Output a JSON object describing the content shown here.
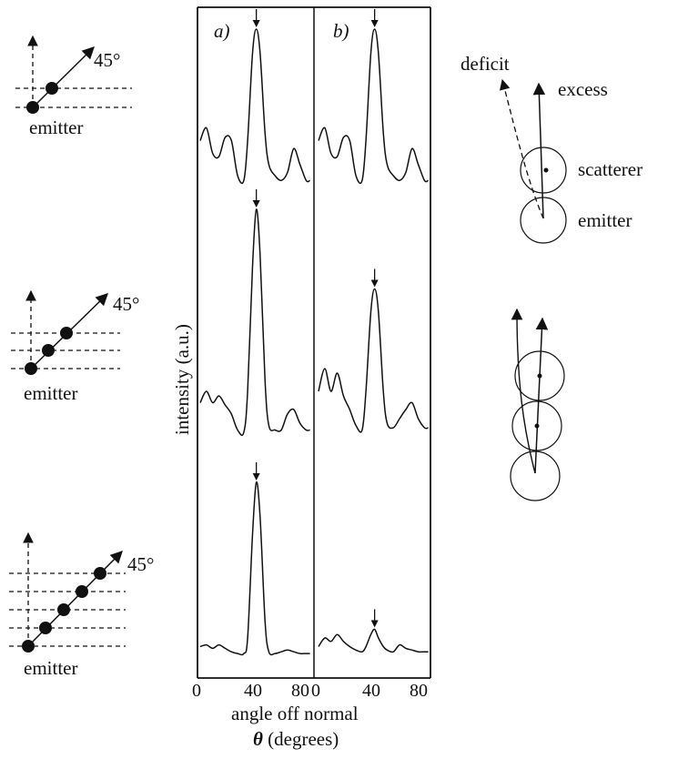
{
  "left_diagrams": [
    {
      "angle_label": "45°",
      "emitter_label": "emitter",
      "atoms": 2
    },
    {
      "angle_label": "45°",
      "emitter_label": "emitter",
      "atoms": 3
    },
    {
      "angle_label": "45°",
      "emitter_label": "emitter",
      "atoms": 5
    }
  ],
  "panel_labels": {
    "a": "a)",
    "b": "b)"
  },
  "y_axis_label": "intensity (a.u.)",
  "x_axis": {
    "label": "angle off normal",
    "unit_symbol": "θ",
    "unit_text": "(degrees)",
    "ticks_a": [
      "0",
      "40",
      "80"
    ],
    "ticks_b": [
      "0",
      "40",
      "80"
    ]
  },
  "right_diagram": {
    "deficit_label": "deficit",
    "excess_label": "excess",
    "scatterer_label": "scatterer",
    "emitter_label": "emitter"
  },
  "chart_data": {
    "type": "line",
    "x_range": [
      0,
      90
    ],
    "xlabel": "angle off normal θ (degrees)",
    "ylabel": "intensity (a.u.)",
    "panels": [
      {
        "name": "a)",
        "traces": [
          {
            "atoms": 2,
            "x": [
              0,
              5,
              10,
              15,
              20,
              25,
              30,
              35,
              38,
              42,
              45,
              48,
              52,
              55,
              60,
              65,
              70,
              75,
              80,
              85,
              90
            ],
            "y": [
              0.3,
              0.38,
              0.22,
              0.2,
              0.32,
              0.3,
              0.08,
              0.05,
              0.3,
              0.85,
              1.0,
              0.85,
              0.35,
              0.15,
              0.08,
              0.05,
              0.1,
              0.25,
              0.15,
              0.05,
              0.05
            ]
          },
          {
            "atoms": 3,
            "x": [
              0,
              5,
              10,
              15,
              20,
              25,
              30,
              35,
              38,
              42,
              45,
              48,
              52,
              55,
              60,
              65,
              70,
              75,
              80,
              85,
              90
            ],
            "y": [
              0.15,
              0.2,
              0.15,
              0.18,
              0.14,
              0.1,
              0.03,
              0.02,
              0.2,
              0.75,
              1.0,
              0.8,
              0.25,
              0.05,
              0.03,
              0.03,
              0.1,
              0.12,
              0.06,
              0.03,
              0.03
            ]
          },
          {
            "atoms": 5,
            "x": [
              0,
              5,
              10,
              15,
              20,
              25,
              30,
              35,
              38,
              42,
              45,
              48,
              52,
              55,
              60,
              65,
              70,
              75,
              80,
              85,
              90
            ],
            "y": [
              0.05,
              0.06,
              0.04,
              0.06,
              0.04,
              0.02,
              0.01,
              0.01,
              0.1,
              0.7,
              1.0,
              0.8,
              0.2,
              0.02,
              0.01,
              0.02,
              0.03,
              0.02,
              0.01,
              0.01,
              0.01
            ]
          }
        ]
      },
      {
        "name": "b)",
        "traces": [
          {
            "atoms": 2,
            "x": [
              0,
              5,
              10,
              15,
              20,
              25,
              30,
              35,
              38,
              42,
              45,
              48,
              52,
              55,
              60,
              65,
              70,
              75,
              80,
              85,
              90
            ],
            "y": [
              0.3,
              0.38,
              0.22,
              0.2,
              0.32,
              0.3,
              0.08,
              0.05,
              0.3,
              0.85,
              1.0,
              0.85,
              0.35,
              0.15,
              0.08,
              0.05,
              0.1,
              0.25,
              0.15,
              0.05,
              0.05
            ]
          },
          {
            "atoms": 3,
            "x": [
              0,
              5,
              10,
              15,
              20,
              25,
              30,
              35,
              38,
              42,
              45,
              48,
              52,
              55,
              60,
              65,
              70,
              75,
              80,
              85,
              90
            ],
            "y": [
              0.2,
              0.3,
              0.2,
              0.28,
              0.18,
              0.12,
              0.05,
              0.03,
              0.2,
              0.55,
              0.65,
              0.55,
              0.2,
              0.06,
              0.04,
              0.08,
              0.12,
              0.15,
              0.08,
              0.04,
              0.04
            ]
          },
          {
            "atoms": 5,
            "x": [
              0,
              5,
              10,
              15,
              20,
              25,
              30,
              35,
              38,
              42,
              45,
              48,
              52,
              55,
              60,
              65,
              70,
              75,
              80,
              85,
              90
            ],
            "y": [
              0.05,
              0.1,
              0.08,
              0.12,
              0.08,
              0.05,
              0.03,
              0.02,
              0.05,
              0.12,
              0.15,
              0.1,
              0.05,
              0.03,
              0.02,
              0.06,
              0.04,
              0.03,
              0.02,
              0.02,
              0.02
            ]
          }
        ]
      }
    ]
  }
}
